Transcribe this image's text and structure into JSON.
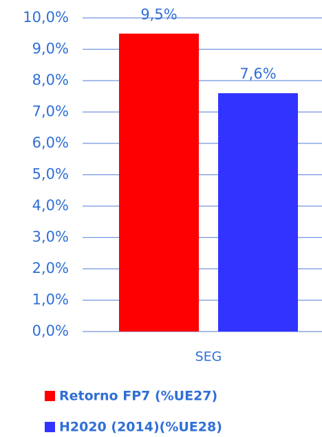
{
  "chart_data": {
    "type": "bar",
    "categories": [
      "SEG"
    ],
    "series": [
      {
        "name": "Retorno FP7 (%UE27)",
        "color": "#ff0000",
        "values": [
          9.5
        ],
        "value_labels": [
          "9,5%"
        ]
      },
      {
        "name": "H2020 (2014)(%UE28)",
        "color": "#3333ff",
        "values": [
          7.6
        ],
        "value_labels": [
          "7,6%"
        ]
      }
    ],
    "ylim": [
      0,
      10
    ],
    "yticks": [
      {
        "value": 0,
        "label": "0,0%"
      },
      {
        "value": 1,
        "label": "1,0%"
      },
      {
        "value": 2,
        "label": "2,0%"
      },
      {
        "value": 3,
        "label": "3,0%"
      },
      {
        "value": 4,
        "label": "4,0%"
      },
      {
        "value": 5,
        "label": "5,0%"
      },
      {
        "value": 6,
        "label": "6,0%"
      },
      {
        "value": 7,
        "label": "7,0%"
      },
      {
        "value": 8,
        "label": "8,0%"
      },
      {
        "value": 9,
        "label": "9,0%"
      },
      {
        "value": 10,
        "label": "10,0%"
      }
    ],
    "grid": true,
    "legend": "bottom"
  }
}
